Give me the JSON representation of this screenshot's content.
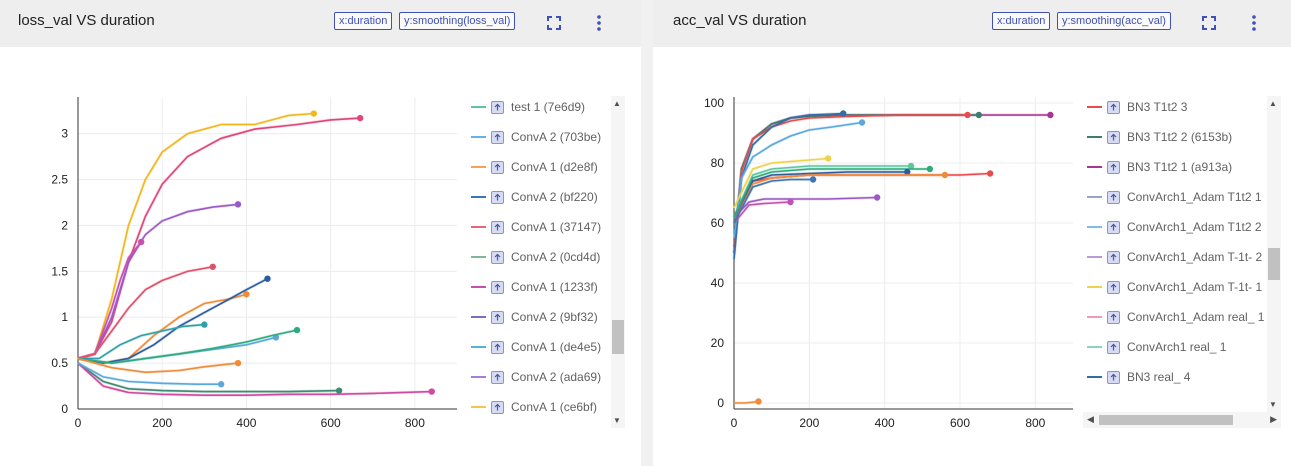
{
  "left_card": {
    "title": "loss_val VS duration",
    "chip_x": "x:duration",
    "chip_y": "y:smoothing(loss_val)",
    "legend": [
      {
        "label": "test 1 (7e6d9)",
        "color": "#5ec6a0"
      },
      {
        "label": "ConvA 2 (703be)",
        "color": "#6ab0e6"
      },
      {
        "label": "ConvA 1 (d2e8f)",
        "color": "#f5a35a"
      },
      {
        "label": "ConvA 2 (bf220)",
        "color": "#3d75b5"
      },
      {
        "label": "ConvA 1 (37147)",
        "color": "#e9647c"
      },
      {
        "label": "ConvA 2 (0cd4d)",
        "color": "#7db89a"
      },
      {
        "label": "ConvA 1 (1233f)",
        "color": "#c451b1"
      },
      {
        "label": "ConvA 2 (9bf32)",
        "color": "#7b6fc4"
      },
      {
        "label": "ConvA 1 (de4e5)",
        "color": "#53b5d6"
      },
      {
        "label": "ConvA 2 (ada69)",
        "color": "#a97bd1"
      },
      {
        "label": "ConvA 1 (ce6bf)",
        "color": "#f2c84b"
      }
    ]
  },
  "right_card": {
    "title": "acc_val VS duration",
    "chip_x": "x:duration",
    "chip_y": "y:smoothing(acc_val)",
    "legend": [
      {
        "label": "BN3 T1t2 3",
        "color": "#e84b4b"
      },
      {
        "label": "BN3 T1t2 2 (6153b)",
        "color": "#3e7d6e"
      },
      {
        "label": "BN3 T1t2 1 (a913a)",
        "color": "#a8358f"
      },
      {
        "label": "ConvArch1_Adam T1t2 1",
        "color": "#98a2ce"
      },
      {
        "label": "ConvArch1_Adam T1t2 2",
        "color": "#80bde5"
      },
      {
        "label": "ConvArch1_Adam T-1t- 2",
        "color": "#b99ad4"
      },
      {
        "label": "ConvArch1_Adam T-1t- 1",
        "color": "#f0d24a"
      },
      {
        "label": "ConvArch1_Adam real_ 1",
        "color": "#f29ab3"
      },
      {
        "label": "ConvArch1 real_ 1",
        "color": "#8fd1c0"
      },
      {
        "label": "BN3 real_ 4",
        "color": "#2f6fa8"
      }
    ]
  },
  "chart_data": [
    {
      "type": "line",
      "title": "loss_val VS duration",
      "xlabel": "",
      "ylabel": "",
      "xlim": [
        0,
        900
      ],
      "ylim": [
        0,
        3.4
      ],
      "xticks": [
        0,
        200,
        400,
        600,
        800
      ],
      "yticks": [
        0,
        0.5,
        1,
        1.5,
        2,
        2.5,
        3
      ],
      "grid": true,
      "legend_position": "right",
      "series": [
        {
          "name": "ConvA 1 (ce6bf)",
          "color": "#f2b71f",
          "x": [
            0,
            40,
            80,
            120,
            160,
            200,
            260,
            340,
            420,
            500,
            560
          ],
          "y": [
            0.55,
            0.6,
            1.2,
            2.0,
            2.5,
            2.8,
            3.0,
            3.1,
            3.1,
            3.2,
            3.22
          ]
        },
        {
          "name": "ConvA 1 (37147)",
          "color": "#e0457b",
          "x": [
            0,
            40,
            80,
            120,
            160,
            200,
            260,
            340,
            420,
            520,
            600,
            670
          ],
          "y": [
            0.55,
            0.6,
            0.95,
            1.6,
            2.1,
            2.45,
            2.75,
            2.95,
            3.05,
            3.1,
            3.15,
            3.17
          ]
        },
        {
          "name": "ConvA 2 (ada69)",
          "color": "#9b59c6",
          "x": [
            0,
            40,
            80,
            120,
            160,
            200,
            260,
            320,
            380
          ],
          "y": [
            0.55,
            0.6,
            1.0,
            1.6,
            1.9,
            2.05,
            2.15,
            2.2,
            2.23
          ]
        },
        {
          "name": "ConvA 1 (1233f)",
          "color": "#c451b1",
          "x": [
            0,
            40,
            80,
            100,
            120,
            150
          ],
          "y": [
            0.55,
            0.6,
            1.1,
            1.4,
            1.65,
            1.82
          ]
        },
        {
          "name": "ConvA 1 (d2e8f)",
          "color": "#f08b37",
          "x": [
            0,
            60,
            120,
            180,
            240,
            300,
            360,
            400
          ],
          "y": [
            0.55,
            0.5,
            0.55,
            0.8,
            1.0,
            1.15,
            1.2,
            1.25
          ]
        },
        {
          "name": "ConvA 2 (bf220)",
          "color": "#2b5c9e",
          "x": [
            0,
            60,
            120,
            180,
            240,
            300,
            360,
            400,
            450
          ],
          "y": [
            0.55,
            0.5,
            0.55,
            0.7,
            0.9,
            1.05,
            1.2,
            1.3,
            1.42
          ]
        },
        {
          "name": "ConvA 1 (37147) b",
          "color": "#e2506a",
          "x": [
            0,
            40,
            80,
            120,
            160,
            200,
            260,
            320
          ],
          "y": [
            0.55,
            0.6,
            0.85,
            1.1,
            1.3,
            1.4,
            1.5,
            1.55
          ]
        },
        {
          "name": "ConvA 2 (703be)",
          "color": "#5aa8dd",
          "x": [
            0,
            80,
            160,
            240,
            320,
            400,
            470
          ],
          "y": [
            0.55,
            0.5,
            0.55,
            0.6,
            0.65,
            0.7,
            0.78
          ]
        },
        {
          "name": "test 1 (7e6d9)",
          "color": "#2eaa7d",
          "x": [
            0,
            80,
            160,
            240,
            320,
            400,
            460,
            520
          ],
          "y": [
            0.55,
            0.5,
            0.55,
            0.6,
            0.66,
            0.73,
            0.8,
            0.86
          ]
        },
        {
          "name": "ConvA 1 (de4e5)",
          "color": "#2fa0a8",
          "x": [
            0,
            50,
            100,
            150,
            200,
            250,
            300
          ],
          "y": [
            0.55,
            0.55,
            0.7,
            0.8,
            0.85,
            0.9,
            0.92
          ]
        },
        {
          "name": "ConvA 2 (0cd4d)",
          "color": "#3e8a73",
          "x": [
            0,
            60,
            120,
            200,
            300,
            400,
            500,
            620
          ],
          "y": [
            0.5,
            0.3,
            0.22,
            0.2,
            0.19,
            0.19,
            0.19,
            0.2
          ]
        },
        {
          "name": "ConvA 1 (1233f) b",
          "color": "#d04aa0",
          "x": [
            0,
            60,
            120,
            200,
            300,
            400,
            500,
            600,
            700,
            840
          ],
          "y": [
            0.5,
            0.25,
            0.18,
            0.16,
            0.15,
            0.15,
            0.16,
            0.16,
            0.17,
            0.19
          ]
        },
        {
          "name": "ConvA 1 (d2e8f) b",
          "color": "#f08b37",
          "x": [
            0,
            80,
            160,
            240,
            300,
            380
          ],
          "y": [
            0.55,
            0.45,
            0.4,
            0.42,
            0.46,
            0.5
          ]
        },
        {
          "name": "ConvA 2 (703be) b",
          "color": "#5aa8dd",
          "x": [
            0,
            60,
            120,
            200,
            280,
            340
          ],
          "y": [
            0.5,
            0.35,
            0.3,
            0.28,
            0.27,
            0.27
          ]
        }
      ]
    },
    {
      "type": "line",
      "title": "acc_val VS duration",
      "xlabel": "",
      "ylabel": "",
      "xlim": [
        0,
        900
      ],
      "ylim": [
        -2,
        102
      ],
      "xticks": [
        0,
        200,
        400,
        600,
        800
      ],
      "yticks": [
        0,
        20,
        40,
        60,
        80,
        100
      ],
      "grid": true,
      "legend_position": "right",
      "series": [
        {
          "name": "BN3 T1t2 1 (a913a)",
          "color": "#a8358f",
          "x": [
            0,
            20,
            50,
            100,
            150,
            200,
            280,
            400,
            600,
            840
          ],
          "y": [
            50,
            78,
            88,
            93,
            95,
            96,
            96,
            96,
            96,
            96
          ]
        },
        {
          "name": "BN3 T1t2 2 (6153b)",
          "color": "#3e7d6e",
          "x": [
            0,
            20,
            50,
            100,
            150,
            200,
            300,
            450,
            650
          ],
          "y": [
            52,
            78,
            88,
            93,
            95,
            95.5,
            96,
            96,
            96
          ]
        },
        {
          "name": "BN3 T1t2 3",
          "color": "#e84b4b",
          "x": [
            0,
            20,
            50,
            100,
            150,
            200,
            300,
            450,
            620
          ],
          "y": [
            50,
            77,
            88,
            92,
            94,
            95,
            95.5,
            96,
            96
          ]
        },
        {
          "name": "BN3 real_ 4",
          "color": "#2f6fa8",
          "x": [
            0,
            20,
            50,
            100,
            150,
            200,
            290
          ],
          "y": [
            48,
            75,
            86,
            92,
            95,
            96,
            96.5
          ]
        },
        {
          "name": "ConvArch1_Adam T1t2 2",
          "color": "#5aa8dd",
          "x": [
            0,
            20,
            50,
            100,
            150,
            200,
            260,
            340
          ],
          "y": [
            55,
            75,
            82,
            86,
            89,
            91,
            92,
            93.5
          ]
        },
        {
          "name": "BN3 T1t2 3 b",
          "color": "#e84b4b",
          "x": [
            0,
            50,
            100,
            200,
            300,
            400,
            500,
            600,
            680
          ],
          "y": [
            62,
            74,
            75,
            76,
            76,
            76,
            76,
            76,
            76.5
          ]
        },
        {
          "name": "ConvArch1_Adam T-1t- 1",
          "color": "#f0d24a",
          "x": [
            0,
            50,
            100,
            150,
            200,
            250
          ],
          "y": [
            65,
            78,
            80,
            80.5,
            81,
            81.5
          ]
        },
        {
          "name": "ConvArch1_Adam T-1t- 2",
          "color": "#9b59c6",
          "x": [
            0,
            40,
            80,
            150,
            250,
            380
          ],
          "y": [
            62,
            67,
            68,
            68,
            68,
            68.5
          ]
        },
        {
          "name": "BN3 T1t2 1 (a913a) b",
          "color": "#c451b1",
          "x": [
            0,
            40,
            80,
            150
          ],
          "y": [
            60,
            66,
            66.5,
            67
          ]
        },
        {
          "name": "ConvArch1 real_ 1",
          "color": "#5ec6a0",
          "x": [
            0,
            50,
            100,
            200,
            300,
            400,
            470
          ],
          "y": [
            62,
            76,
            78,
            79,
            79,
            79,
            79
          ]
        },
        {
          "name": "BN3 T1t2 2 (6153b) b",
          "color": "#2eaa7d",
          "x": [
            0,
            50,
            100,
            200,
            300,
            400,
            520
          ],
          "y": [
            62,
            75,
            77,
            78,
            78,
            78,
            78
          ]
        },
        {
          "name": "ConvArch1_Adam T1t2 1",
          "color": "#2b5c9e",
          "x": [
            0,
            50,
            100,
            200,
            300,
            400,
            460
          ],
          "y": [
            60,
            74,
            76,
            76.5,
            77,
            77,
            77
          ]
        },
        {
          "name": "ConvArch1_Adam T1t2 1 b",
          "color": "#f08b37",
          "x": [
            0,
            50,
            100,
            200,
            300,
            400,
            560
          ],
          "y": [
            60,
            73,
            75,
            76,
            76,
            76,
            76
          ]
        },
        {
          "name": "ConvArch1_Adam T1t2 2 b",
          "color": "#3d75b5",
          "x": [
            0,
            50,
            100,
            150,
            210
          ],
          "y": [
            60,
            72,
            74,
            74.5,
            74.5
          ]
        },
        {
          "name": "ConvArch1_Adam real_ 1",
          "color": "#f08b37",
          "x": [
            0,
            30,
            65
          ],
          "y": [
            0,
            0,
            0.5
          ]
        }
      ]
    }
  ]
}
